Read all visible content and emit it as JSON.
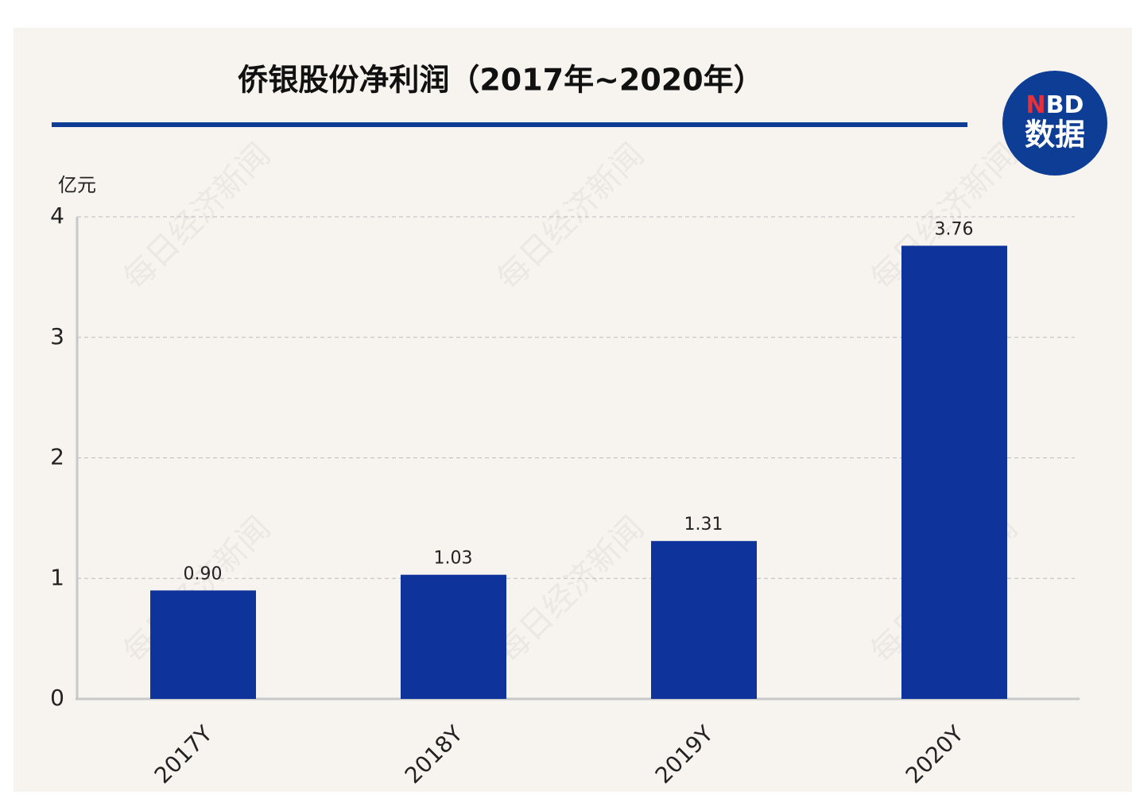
{
  "chart_data": {
    "type": "bar",
    "title": "侨银股份净利润（2017年~2020年）",
    "unit": "亿元",
    "categories": [
      "2017Y",
      "2018Y",
      "2019Y",
      "2020Y"
    ],
    "values": [
      0.9,
      1.03,
      1.31,
      3.76
    ],
    "value_labels": [
      "0.90",
      "1.03",
      "1.31",
      "3.76"
    ],
    "color": "#0e349b",
    "ylim": [
      0,
      4
    ],
    "yticks": [
      0,
      1,
      2,
      3,
      4
    ],
    "grid": true,
    "logo": [
      "N",
      "BD",
      "数据"
    ],
    "watermark": "每日经济新闻"
  }
}
